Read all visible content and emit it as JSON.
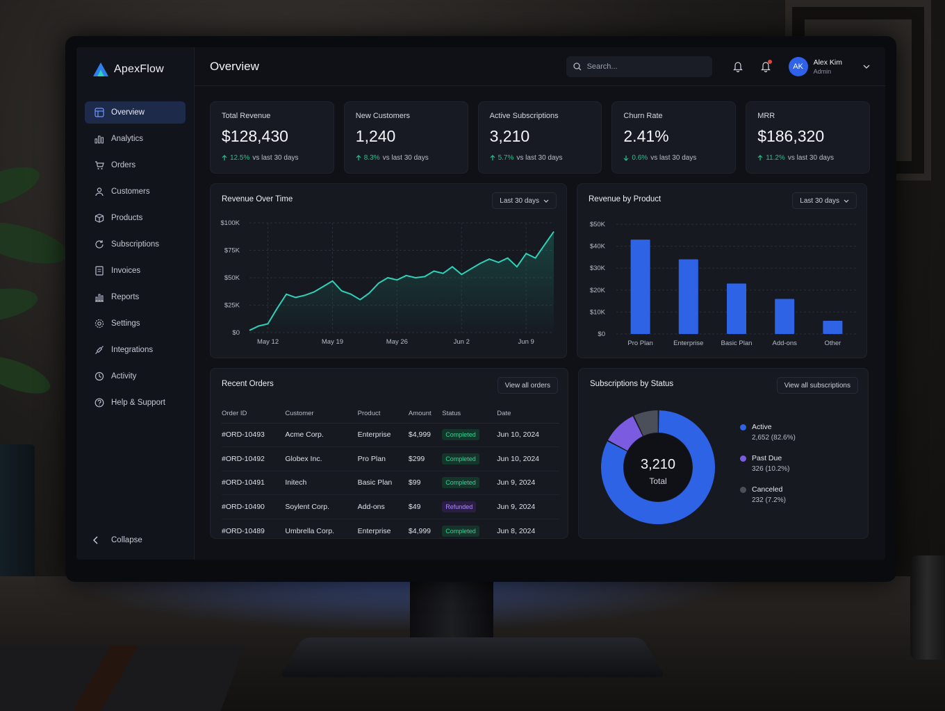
{
  "brand": {
    "name": "ApexFlow"
  },
  "sidebar": {
    "items": [
      {
        "label": "Overview",
        "icon": "overview-icon",
        "active": true
      },
      {
        "label": "Analytics",
        "icon": "analytics-icon"
      },
      {
        "label": "Orders",
        "icon": "cart-icon"
      },
      {
        "label": "Customers",
        "icon": "users-icon"
      },
      {
        "label": "Products",
        "icon": "box-icon"
      },
      {
        "label": "Subscriptions",
        "icon": "refresh-icon"
      },
      {
        "label": "Invoices",
        "icon": "invoice-icon"
      },
      {
        "label": "Reports",
        "icon": "reports-icon"
      },
      {
        "label": "Settings",
        "icon": "gear-icon"
      },
      {
        "label": "Integrations",
        "icon": "plug-icon"
      },
      {
        "label": "Activity",
        "icon": "activity-icon"
      },
      {
        "label": "Help & Support",
        "icon": "help-icon"
      }
    ],
    "collapse_label": "Collapse"
  },
  "header": {
    "title": "Overview",
    "search_placeholder": "Search...",
    "user": {
      "initials": "AK",
      "name": "Alex Kim",
      "role": "Admin"
    }
  },
  "kpis": [
    {
      "label": "Total Revenue",
      "value": "$128,430",
      "delta": "12.5%",
      "direction": "up",
      "suffix": "vs last 30 days"
    },
    {
      "label": "New Customers",
      "value": "1,240",
      "delta": "8.3%",
      "direction": "up",
      "suffix": "vs last 30 days"
    },
    {
      "label": "Active Subscriptions",
      "value": "3,210",
      "delta": "5.7%",
      "direction": "up",
      "suffix": "vs last 30 days"
    },
    {
      "label": "Churn Rate",
      "value": "2.41%",
      "delta": "0.6%",
      "direction": "down",
      "suffix": "vs last 30 days"
    },
    {
      "label": "MRR",
      "value": "$186,320",
      "delta": "11.2%",
      "direction": "up",
      "suffix": "vs last 30 days"
    }
  ],
  "revenue_over_time": {
    "title": "Revenue Over Time",
    "range_label": "Last 30 days",
    "y_ticks": [
      "$100K",
      "$75K",
      "$50K",
      "$25K",
      "$0"
    ],
    "x_ticks": [
      "May 12",
      "May 19",
      "May 26",
      "Jun 2",
      "Jun 9"
    ]
  },
  "revenue_by_product": {
    "title": "Revenue by Product",
    "range_label": "Last 30 days",
    "y_ticks": [
      "$50K",
      "$40K",
      "$30K",
      "$20K",
      "$10K",
      "$0"
    ]
  },
  "recent_orders": {
    "title": "Recent Orders",
    "view_all_label": "View all orders",
    "columns": [
      "Order ID",
      "Customer",
      "Product",
      "Amount",
      "Status",
      "Date"
    ],
    "rows": [
      {
        "id": "#ORD-10493",
        "customer": "Acme Corp.",
        "product": "Enterprise",
        "amount": "$4,999",
        "status": "Completed",
        "date": "Jun 10, 2024"
      },
      {
        "id": "#ORD-10492",
        "customer": "Globex Inc.",
        "product": "Pro Plan",
        "amount": "$299",
        "status": "Completed",
        "date": "Jun 10, 2024"
      },
      {
        "id": "#ORD-10491",
        "customer": "Initech",
        "product": "Basic Plan",
        "amount": "$99",
        "status": "Completed",
        "date": "Jun 9, 2024"
      },
      {
        "id": "#ORD-10490",
        "customer": "Soylent Corp.",
        "product": "Add-ons",
        "amount": "$49",
        "status": "Refunded",
        "date": "Jun 9, 2024"
      },
      {
        "id": "#ORD-10489",
        "customer": "Umbrella Corp.",
        "product": "Enterprise",
        "amount": "$4,999",
        "status": "Completed",
        "date": "Jun 8, 2024"
      }
    ]
  },
  "subscriptions_by_status": {
    "title": "Subscriptions by Status",
    "view_all_label": "View all subscriptions",
    "center_value": "3,210",
    "center_label": "Total",
    "segments": [
      {
        "name": "Active",
        "detail": "2,652 (82.6%)",
        "value": 2652,
        "color": "#2f63e6"
      },
      {
        "name": "Past Due",
        "detail": "326 (10.2%)",
        "value": 326,
        "color": "#7b5ce0"
      },
      {
        "name": "Canceled",
        "detail": "232 (7.2%)",
        "value": 232,
        "color": "#4a4f5a"
      }
    ]
  },
  "colors": {
    "accent": "#2f63e6",
    "line": "#2fd1b8",
    "positive": "#26c28b",
    "refunded": "#b08cff"
  },
  "chart_data": [
    {
      "type": "area",
      "title": "Revenue Over Time",
      "x": [
        "May 10",
        "May 11",
        "May 12",
        "May 13",
        "May 14",
        "May 15",
        "May 16",
        "May 17",
        "May 18",
        "May 19",
        "May 20",
        "May 21",
        "May 22",
        "May 23",
        "May 24",
        "May 25",
        "May 26",
        "May 27",
        "May 28",
        "May 29",
        "May 30",
        "May 31",
        "Jun 1",
        "Jun 2",
        "Jun 3",
        "Jun 4",
        "Jun 5",
        "Jun 6",
        "Jun 7",
        "Jun 8",
        "Jun 9",
        "Jun 10",
        "Jun 11",
        "Jun 12"
      ],
      "series": [
        {
          "values": [
            2000,
            6000,
            8000,
            22000,
            35000,
            32000,
            34000,
            37000,
            42000,
            47000,
            38000,
            35000,
            30000,
            36000,
            45000,
            50000,
            48000,
            52000,
            50000,
            51000,
            56000,
            54000,
            60000,
            53000,
            58000,
            63000,
            67000,
            64000,
            68000,
            60000,
            72000,
            68000,
            80000,
            92000
          ]
        }
      ],
      "ylim": [
        0,
        100000
      ],
      "grid": true
    },
    {
      "type": "bar",
      "title": "Revenue by Product",
      "categories": [
        "Pro Plan",
        "Enterprise",
        "Basic Plan",
        "Add-ons",
        "Other"
      ],
      "values": [
        43000,
        34000,
        23000,
        16000,
        6000
      ],
      "ylim": [
        0,
        50000
      ],
      "grid": true
    },
    {
      "type": "pie",
      "title": "Subscriptions by Status",
      "categories": [
        "Active",
        "Past Due",
        "Canceled"
      ],
      "values": [
        2652,
        326,
        232
      ]
    }
  ]
}
